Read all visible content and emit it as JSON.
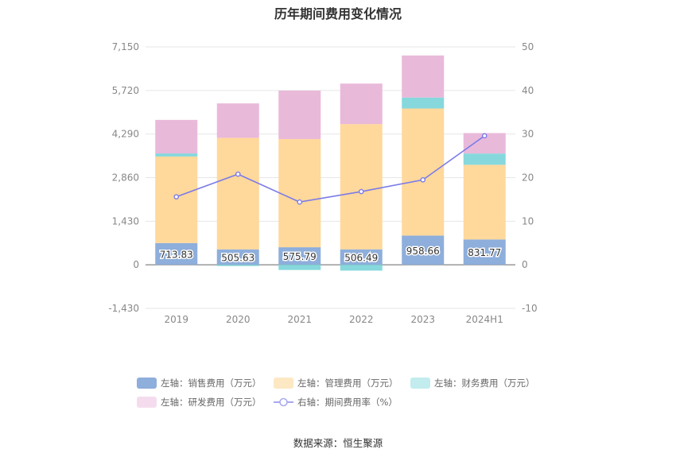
{
  "chart_data": {
    "type": "bar",
    "title": "历年期间费用变化情况",
    "categories": [
      "2019",
      "2020",
      "2021",
      "2022",
      "2023",
      "2024H1"
    ],
    "left_axis": {
      "ticks": [
        "7,150",
        "5,720",
        "4,290",
        "2,860",
        "1,430",
        "0",
        "-1,430"
      ],
      "ylim": [
        -1430,
        7150
      ]
    },
    "right_axis": {
      "ticks": [
        "50",
        "40",
        "30",
        "20",
        "10",
        "0",
        "-10"
      ],
      "ylim": [
        -10,
        50
      ]
    },
    "series": [
      {
        "name": "左轴：销售费用（万元）",
        "type": "bar",
        "axis": "left",
        "color": "#8eaedb",
        "values": [
          713.83,
          505.63,
          575.79,
          506.49,
          958.66,
          831.77
        ]
      },
      {
        "name": "左轴：管理费用（万元）",
        "type": "bar",
        "axis": "left",
        "color": "#ffd89b",
        "values": [
          2840,
          3660,
          3550,
          4110,
          4170,
          2450
        ]
      },
      {
        "name": "左轴：财务费用（万元）",
        "type": "bar",
        "axis": "left",
        "color": "#86d8dc",
        "values": [
          100,
          -40,
          -170,
          -190,
          360,
          370
        ]
      },
      {
        "name": "左轴：研发费用（万元）",
        "type": "bar",
        "axis": "left",
        "color": "#e9b9da",
        "values": [
          1100,
          1130,
          1590,
          1330,
          1380,
          670
        ]
      },
      {
        "name": "右轴：期间费用率（%）",
        "type": "line",
        "axis": "right",
        "color": "#7b7be8",
        "values": [
          15.6,
          20.8,
          14.4,
          16.8,
          19.5,
          29.6
        ]
      }
    ],
    "data_labels": [
      "713.83",
      "505.63",
      "575.79",
      "506.49",
      "958.66",
      "831.77"
    ],
    "grid": true,
    "legend_position": "bottom"
  },
  "source_text": "数据来源：恒生聚源"
}
